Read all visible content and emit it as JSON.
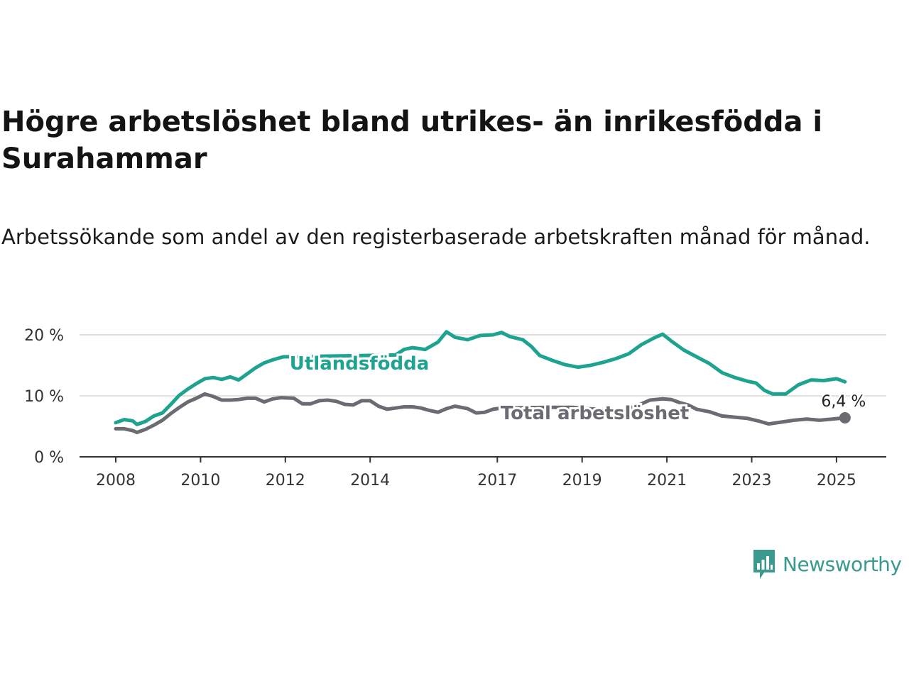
{
  "header": {
    "title": "Högre arbetslöshet bland utrikes- än inrikesfödda i Surahammar",
    "subtitle": "Arbetssökande som andel av den registerbaserade arbetskraften månad för månad."
  },
  "brand": {
    "name": "Newsworthy",
    "icon": "bar-chart-speech-bubble-icon",
    "color": "#3a9a8d"
  },
  "chart_data": {
    "type": "line",
    "xlabel": "",
    "ylabel": "",
    "ylim": [
      0,
      20
    ],
    "xlim": [
      2008,
      2025.5
    ],
    "grid": true,
    "y_ticks": [
      {
        "value": 0,
        "label": "0 %"
      },
      {
        "value": 10,
        "label": "10 %"
      },
      {
        "value": 20,
        "label": "20 %"
      }
    ],
    "x_ticks": [
      {
        "value": 2008,
        "label": "2008"
      },
      {
        "value": 2010,
        "label": "2010"
      },
      {
        "value": 2012,
        "label": "2012"
      },
      {
        "value": 2014,
        "label": "2014"
      },
      {
        "value": 2017,
        "label": "2017"
      },
      {
        "value": 2019,
        "label": "2019"
      },
      {
        "value": 2021,
        "label": "2021"
      },
      {
        "value": 2023,
        "label": "2023"
      },
      {
        "value": 2025,
        "label": "2025"
      }
    ],
    "series": [
      {
        "name": "Utlandsfödda",
        "color": "#1ea391",
        "label_at": 2012.1,
        "points": [
          [
            2008.0,
            5.6
          ],
          [
            2008.2,
            6.1
          ],
          [
            2008.4,
            5.9
          ],
          [
            2008.5,
            5.3
          ],
          [
            2008.7,
            5.8
          ],
          [
            2008.9,
            6.7
          ],
          [
            2009.1,
            7.2
          ],
          [
            2009.3,
            8.6
          ],
          [
            2009.5,
            10.1
          ],
          [
            2009.7,
            11.1
          ],
          [
            2009.9,
            12.0
          ],
          [
            2010.1,
            12.8
          ],
          [
            2010.3,
            13.0
          ],
          [
            2010.5,
            12.7
          ],
          [
            2010.7,
            13.1
          ],
          [
            2010.9,
            12.6
          ],
          [
            2011.1,
            13.6
          ],
          [
            2011.3,
            14.6
          ],
          [
            2011.5,
            15.4
          ],
          [
            2011.7,
            15.9
          ],
          [
            2011.95,
            16.4
          ],
          [
            2014.6,
            16.7
          ],
          [
            2014.8,
            17.6
          ],
          [
            2015.0,
            17.9
          ],
          [
            2015.3,
            17.6
          ],
          [
            2015.6,
            18.8
          ],
          [
            2015.8,
            20.5
          ],
          [
            2016.0,
            19.6
          ],
          [
            2016.3,
            19.2
          ],
          [
            2016.6,
            19.9
          ],
          [
            2016.9,
            20.0
          ],
          [
            2017.1,
            20.4
          ],
          [
            2017.3,
            19.7
          ],
          [
            2017.6,
            19.2
          ],
          [
            2017.8,
            18.1
          ],
          [
            2018.0,
            16.6
          ],
          [
            2018.3,
            15.8
          ],
          [
            2018.6,
            15.1
          ],
          [
            2018.9,
            14.7
          ],
          [
            2019.2,
            15.0
          ],
          [
            2019.5,
            15.5
          ],
          [
            2019.8,
            16.1
          ],
          [
            2020.1,
            16.9
          ],
          [
            2020.4,
            18.4
          ],
          [
            2020.7,
            19.5
          ],
          [
            2020.9,
            20.1
          ],
          [
            2021.1,
            19.0
          ],
          [
            2021.4,
            17.5
          ],
          [
            2021.7,
            16.4
          ],
          [
            2022.0,
            15.3
          ],
          [
            2022.3,
            13.8
          ],
          [
            2022.6,
            13.0
          ],
          [
            2022.9,
            12.4
          ],
          [
            2023.1,
            12.1
          ],
          [
            2023.3,
            10.9
          ],
          [
            2023.5,
            10.3
          ],
          [
            2023.8,
            10.3
          ],
          [
            2024.1,
            11.8
          ],
          [
            2024.4,
            12.6
          ],
          [
            2024.7,
            12.5
          ],
          [
            2025.0,
            12.8
          ],
          [
            2025.2,
            12.3
          ]
        ]
      },
      {
        "name": "Total arbetslöshet",
        "color": "#6b6b73",
        "label_at": 2019.3,
        "end_value_label": "6,4 %",
        "points": [
          [
            2008.0,
            4.6
          ],
          [
            2008.2,
            4.6
          ],
          [
            2008.4,
            4.3
          ],
          [
            2008.5,
            4.0
          ],
          [
            2008.7,
            4.5
          ],
          [
            2008.9,
            5.2
          ],
          [
            2009.1,
            6.0
          ],
          [
            2009.3,
            7.1
          ],
          [
            2009.5,
            8.1
          ],
          [
            2009.7,
            9.0
          ],
          [
            2009.9,
            9.6
          ],
          [
            2010.1,
            10.3
          ],
          [
            2010.3,
            9.9
          ],
          [
            2010.5,
            9.3
          ],
          [
            2010.7,
            9.3
          ],
          [
            2010.9,
            9.4
          ],
          [
            2011.1,
            9.6
          ],
          [
            2011.3,
            9.6
          ],
          [
            2011.5,
            9.0
          ],
          [
            2011.7,
            9.5
          ],
          [
            2011.9,
            9.7
          ],
          [
            2012.2,
            9.6
          ],
          [
            2012.4,
            8.7
          ],
          [
            2012.6,
            8.7
          ],
          [
            2012.8,
            9.2
          ],
          [
            2013.0,
            9.3
          ],
          [
            2013.2,
            9.1
          ],
          [
            2013.4,
            8.6
          ],
          [
            2013.6,
            8.5
          ],
          [
            2013.8,
            9.2
          ],
          [
            2014.0,
            9.2
          ],
          [
            2014.2,
            8.3
          ],
          [
            2014.4,
            7.8
          ],
          [
            2014.6,
            8.0
          ],
          [
            2014.8,
            8.2
          ],
          [
            2015.0,
            8.2
          ],
          [
            2015.2,
            8.0
          ],
          [
            2015.4,
            7.6
          ],
          [
            2015.6,
            7.3
          ],
          [
            2015.8,
            7.9
          ],
          [
            2016.0,
            8.3
          ],
          [
            2016.3,
            7.9
          ],
          [
            2016.5,
            7.2
          ],
          [
            2016.7,
            7.3
          ],
          [
            2016.9,
            7.8
          ],
          [
            2017.1,
            8.0
          ],
          [
            2018.2,
            8.1
          ],
          [
            2018.5,
            8.1
          ],
          [
            2018.8,
            8.1
          ],
          [
            2019.1,
            7.9
          ],
          [
            2019.4,
            7.8
          ],
          [
            2019.7,
            7.6
          ],
          [
            2019.9,
            7.5
          ],
          [
            2020.3,
            8.4
          ],
          [
            2020.6,
            9.3
          ],
          [
            2020.9,
            9.5
          ],
          [
            2021.1,
            9.4
          ],
          [
            2021.3,
            8.9
          ],
          [
            2021.5,
            8.5
          ],
          [
            2021.7,
            7.8
          ],
          [
            2022.0,
            7.4
          ],
          [
            2022.3,
            6.7
          ],
          [
            2022.6,
            6.5
          ],
          [
            2022.9,
            6.3
          ],
          [
            2023.2,
            5.8
          ],
          [
            2023.4,
            5.4
          ],
          [
            2023.7,
            5.7
          ],
          [
            2024.0,
            6.0
          ],
          [
            2024.3,
            6.2
          ],
          [
            2024.6,
            6.0
          ],
          [
            2024.9,
            6.2
          ],
          [
            2025.2,
            6.4
          ]
        ]
      }
    ]
  }
}
